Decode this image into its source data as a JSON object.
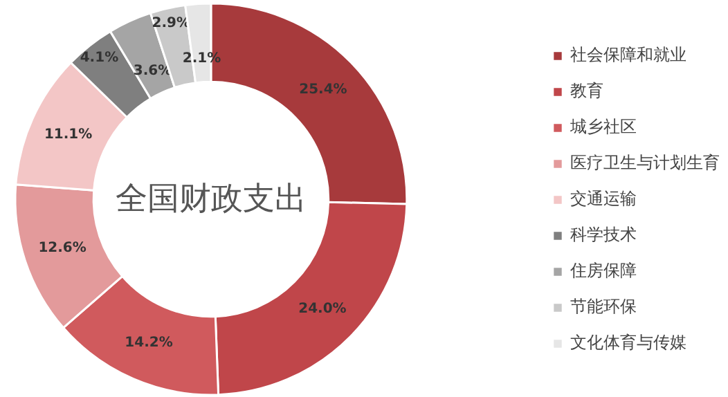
{
  "chart_data": {
    "type": "donut",
    "title": "全国财政支出",
    "categories": [
      "社会保障和就业",
      "教育",
      "城乡社区",
      "医疗卫生与计划生育",
      "交通运输",
      "科学技术",
      "住房保障",
      "节能环保",
      "文化体育与传媒"
    ],
    "values": [
      25.4,
      24.0,
      14.2,
      12.6,
      11.1,
      4.1,
      3.6,
      2.9,
      2.1
    ],
    "value_labels": [
      "25.4%",
      "24.0%",
      "14.2%",
      "12.6%",
      "11.1%",
      "4.1%",
      "3.6%",
      "2.9%",
      "2.1%"
    ],
    "colors": [
      "#a73a3c",
      "#c0464a",
      "#d05a5d",
      "#e39a9b",
      "#f3c6c6",
      "#7f7f7f",
      "#a5a5a5",
      "#c9c9c9",
      "#e6e6e6"
    ],
    "legend": "right"
  }
}
